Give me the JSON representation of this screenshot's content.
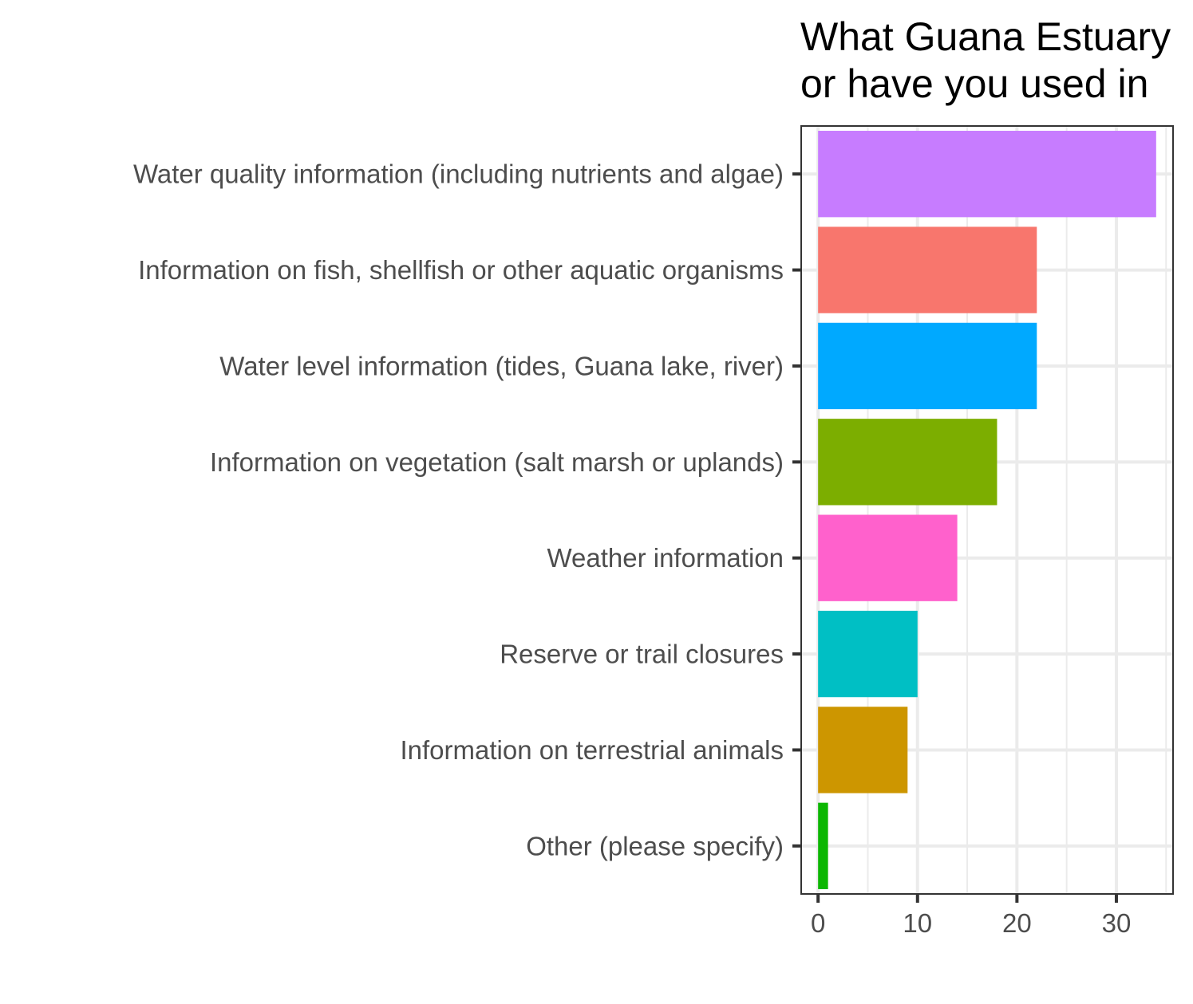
{
  "chart_data": {
    "type": "bar",
    "orientation": "horizontal",
    "title_lines": [
      "What Guana Estuary",
      "or have you used in"
    ],
    "categories": [
      "Water quality information (including nutrients and algae)",
      "Information on fish, shellfish or other aquatic organisms",
      "Water level information (tides, Guana lake, river)",
      "Information on vegetation (salt marsh or uplands)",
      "Weather information",
      "Reserve or trail closures",
      "Information on terrestrial animals",
      "Other (please specify)"
    ],
    "values": [
      34,
      22,
      22,
      18,
      14,
      10,
      9,
      1
    ],
    "colors": [
      "#C77CFF",
      "#F8766D",
      "#00A9FF",
      "#7CAE00",
      "#FF61CC",
      "#00BFC4",
      "#CD9600",
      "#0CB702"
    ],
    "x_ticks": [
      0,
      10,
      20,
      30
    ],
    "xlim": [
      -1.7,
      35.7
    ],
    "grid": true,
    "legend": "none"
  }
}
